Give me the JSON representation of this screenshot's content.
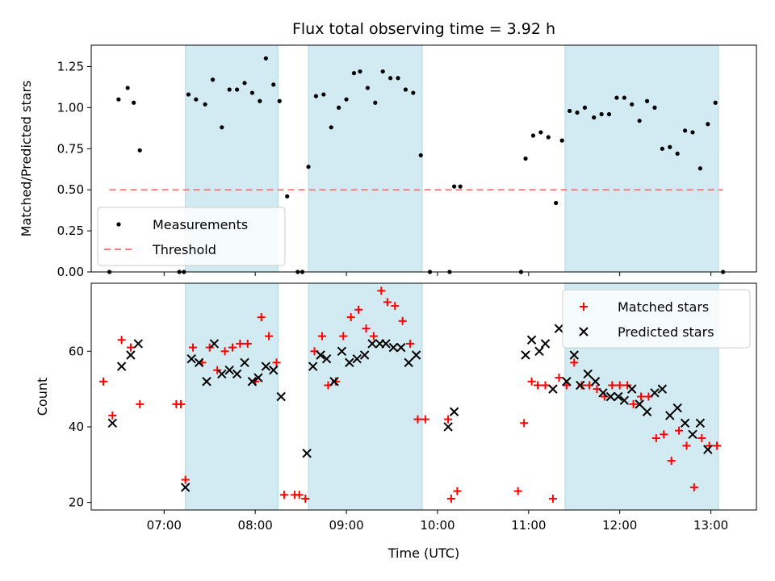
{
  "chart_data": [
    {
      "type": "scatter",
      "title": "Flux total observing time = 3.92 h",
      "xlabel": "",
      "ylabel": "Matched/Predicted stars",
      "xlim": [
        "06:12",
        "13:30"
      ],
      "ylim": [
        0,
        1.38
      ],
      "yticks": [
        0.0,
        0.25,
        0.5,
        0.75,
        1.0,
        1.25
      ],
      "ytick_labels": [
        "0.00",
        "0.25",
        "0.50",
        "0.75",
        "1.00",
        "1.25"
      ],
      "xticks": [
        "07:00",
        "08:00",
        "09:00",
        "10:00",
        "11:00",
        "12:00",
        "13:00"
      ],
      "shaded_intervals": [
        [
          "07:14",
          "08:15"
        ],
        [
          "08:35",
          "09:50"
        ],
        [
          "11:24",
          "13:05"
        ]
      ],
      "shade_color": "#add8e6",
      "legend": {
        "placement": "lower-left",
        "entries": [
          {
            "label": "Measurements",
            "marker": "dot",
            "color": "#000000"
          },
          {
            "label": "Threshold",
            "marker": "dashed-line",
            "color": "#f08080"
          }
        ]
      },
      "series": [
        {
          "name": "Measurements",
          "color": "#000000",
          "points": [
            [
              "06:24",
              0.0
            ],
            [
              "06:30",
              1.05
            ],
            [
              "06:36",
              1.12
            ],
            [
              "06:40",
              1.03
            ],
            [
              "06:44",
              0.74
            ],
            [
              "07:10",
              0.0
            ],
            [
              "07:13",
              0.0
            ],
            [
              "07:16",
              1.08
            ],
            [
              "07:21",
              1.05
            ],
            [
              "07:27",
              1.02
            ],
            [
              "07:32",
              1.17
            ],
            [
              "07:38",
              0.88
            ],
            [
              "07:43",
              1.11
            ],
            [
              "07:48",
              1.11
            ],
            [
              "07:53",
              1.15
            ],
            [
              "07:58",
              1.09
            ],
            [
              "08:03",
              1.04
            ],
            [
              "08:07",
              1.3
            ],
            [
              "08:12",
              1.14
            ],
            [
              "08:16",
              1.04
            ],
            [
              "08:21",
              0.46
            ],
            [
              "08:28",
              0.0
            ],
            [
              "08:31",
              0.0
            ],
            [
              "08:35",
              0.64
            ],
            [
              "08:40",
              1.07
            ],
            [
              "08:45",
              1.08
            ],
            [
              "08:50",
              0.88
            ],
            [
              "08:55",
              1.0
            ],
            [
              "09:00",
              1.05
            ],
            [
              "09:05",
              1.21
            ],
            [
              "09:09",
              1.22
            ],
            [
              "09:14",
              1.12
            ],
            [
              "09:19",
              1.03
            ],
            [
              "09:24",
              1.22
            ],
            [
              "09:29",
              1.18
            ],
            [
              "09:34",
              1.18
            ],
            [
              "09:39",
              1.11
            ],
            [
              "09:44",
              1.09
            ],
            [
              "09:49",
              0.71
            ],
            [
              "09:55",
              0.0
            ],
            [
              "10:08",
              0.0
            ],
            [
              "10:11",
              0.52
            ],
            [
              "10:15",
              0.52
            ],
            [
              "10:55",
              0.0
            ],
            [
              "10:58",
              0.69
            ],
            [
              "11:03",
              0.83
            ],
            [
              "11:08",
              0.85
            ],
            [
              "11:13",
              0.82
            ],
            [
              "11:18",
              0.42
            ],
            [
              "11:22",
              0.8
            ],
            [
              "11:27",
              0.98
            ],
            [
              "11:32",
              0.97
            ],
            [
              "11:37",
              1.0
            ],
            [
              "11:43",
              0.94
            ],
            [
              "11:48",
              0.96
            ],
            [
              "11:53",
              0.96
            ],
            [
              "11:58",
              1.06
            ],
            [
              "12:03",
              1.06
            ],
            [
              "12:08",
              1.02
            ],
            [
              "12:13",
              0.92
            ],
            [
              "12:18",
              1.04
            ],
            [
              "12:23",
              1.0
            ],
            [
              "12:28",
              0.75
            ],
            [
              "12:33",
              0.76
            ],
            [
              "12:38",
              0.72
            ],
            [
              "12:43",
              0.86
            ],
            [
              "12:48",
              0.85
            ],
            [
              "12:53",
              0.63
            ],
            [
              "12:58",
              0.9
            ],
            [
              "13:03",
              1.03
            ],
            [
              "13:08",
              0.0
            ]
          ]
        },
        {
          "name": "Threshold",
          "color": "#f08080",
          "line_style": "dashed",
          "points": [
            [
              "06:24",
              0.5
            ],
            [
              "13:08",
              0.5
            ]
          ]
        }
      ]
    },
    {
      "type": "scatter",
      "title": "",
      "xlabel": "Time (UTC)",
      "ylabel": "Count",
      "xlim": [
        "06:12",
        "13:30"
      ],
      "ylim": [
        18,
        78
      ],
      "yticks": [
        20,
        40,
        60
      ],
      "ytick_labels": [
        "20",
        "40",
        "60"
      ],
      "xticks": [
        "07:00",
        "08:00",
        "09:00",
        "10:00",
        "11:00",
        "12:00",
        "13:00"
      ],
      "xtick_labels": [
        "07:00",
        "08:00",
        "09:00",
        "10:00",
        "11:00",
        "12:00",
        "13:00"
      ],
      "shaded_intervals": [
        [
          "07:14",
          "08:15"
        ],
        [
          "08:35",
          "09:50"
        ],
        [
          "11:24",
          "13:05"
        ]
      ],
      "shade_color": "#add8e6",
      "legend": {
        "placement": "top-right",
        "entries": [
          {
            "label": "Matched stars",
            "marker": "plus",
            "color": "#ff0000"
          },
          {
            "label": "Predicted stars",
            "marker": "x",
            "color": "#000000"
          }
        ]
      },
      "series": [
        {
          "name": "Matched stars",
          "color": "#ff0000",
          "marker": "plus",
          "points": [
            [
              "06:20",
              52
            ],
            [
              "06:26",
              43
            ],
            [
              "06:32",
              63
            ],
            [
              "06:38",
              61
            ],
            [
              "06:44",
              46
            ],
            [
              "07:08",
              46
            ],
            [
              "07:11",
              46
            ],
            [
              "07:14",
              26
            ],
            [
              "07:19",
              61
            ],
            [
              "07:25",
              57
            ],
            [
              "07:30",
              61
            ],
            [
              "07:35",
              55
            ],
            [
              "07:40",
              60
            ],
            [
              "07:45",
              61
            ],
            [
              "07:50",
              62
            ],
            [
              "07:55",
              62
            ],
            [
              "08:00",
              52
            ],
            [
              "08:04",
              69
            ],
            [
              "08:09",
              64
            ],
            [
              "08:14",
              57
            ],
            [
              "08:19",
              22
            ],
            [
              "08:26",
              22
            ],
            [
              "08:29",
              22
            ],
            [
              "08:33",
              21
            ],
            [
              "08:39",
              60
            ],
            [
              "08:44",
              64
            ],
            [
              "08:48",
              51
            ],
            [
              "08:53",
              52
            ],
            [
              "08:58",
              64
            ],
            [
              "09:03",
              69
            ],
            [
              "09:08",
              71
            ],
            [
              "09:13",
              66
            ],
            [
              "09:18",
              64
            ],
            [
              "09:23",
              76
            ],
            [
              "09:27",
              73
            ],
            [
              "09:32",
              72
            ],
            [
              "09:37",
              68
            ],
            [
              "09:42",
              62
            ],
            [
              "09:47",
              42
            ],
            [
              "09:52",
              42
            ],
            [
              "10:07",
              42
            ],
            [
              "10:09",
              21
            ],
            [
              "10:13",
              23
            ],
            [
              "10:53",
              23
            ],
            [
              "10:57",
              41
            ],
            [
              "11:02",
              52
            ],
            [
              "11:06",
              51
            ],
            [
              "11:11",
              51
            ],
            [
              "11:16",
              21
            ],
            [
              "11:20",
              53
            ],
            [
              "11:25",
              51
            ],
            [
              "11:30",
              57
            ],
            [
              "11:35",
              51
            ],
            [
              "11:40",
              51
            ],
            [
              "11:45",
              50
            ],
            [
              "11:50",
              48
            ],
            [
              "11:55",
              51
            ],
            [
              "12:00",
              51
            ],
            [
              "12:05",
              51
            ],
            [
              "12:09",
              46
            ],
            [
              "12:14",
              48
            ],
            [
              "12:19",
              48
            ],
            [
              "12:24",
              37
            ],
            [
              "12:29",
              38
            ],
            [
              "12:34",
              31
            ],
            [
              "12:39",
              39
            ],
            [
              "12:44",
              35
            ],
            [
              "12:49",
              24
            ],
            [
              "12:54",
              37
            ],
            [
              "12:59",
              35
            ],
            [
              "13:04",
              35
            ]
          ]
        },
        {
          "name": "Predicted stars",
          "color": "#000000",
          "marker": "x",
          "points": [
            [
              "06:26",
              41
            ],
            [
              "06:32",
              56
            ],
            [
              "06:38",
              59
            ],
            [
              "06:43",
              62
            ],
            [
              "07:14",
              24
            ],
            [
              "07:18",
              58
            ],
            [
              "07:23",
              57
            ],
            [
              "07:28",
              52
            ],
            [
              "07:33",
              62
            ],
            [
              "07:38",
              54
            ],
            [
              "07:43",
              55
            ],
            [
              "07:48",
              54
            ],
            [
              "07:53",
              57
            ],
            [
              "07:58",
              52
            ],
            [
              "08:02",
              53
            ],
            [
              "08:07",
              56
            ],
            [
              "08:12",
              55
            ],
            [
              "08:17",
              48
            ],
            [
              "08:34",
              33
            ],
            [
              "08:38",
              56
            ],
            [
              "08:43",
              59
            ],
            [
              "08:47",
              58
            ],
            [
              "08:52",
              52
            ],
            [
              "08:57",
              60
            ],
            [
              "09:02",
              57
            ],
            [
              "09:07",
              58
            ],
            [
              "09:12",
              59
            ],
            [
              "09:17",
              62
            ],
            [
              "09:22",
              62
            ],
            [
              "09:26",
              62
            ],
            [
              "09:31",
              61
            ],
            [
              "09:36",
              61
            ],
            [
              "09:41",
              57
            ],
            [
              "09:46",
              59
            ],
            [
              "10:07",
              40
            ],
            [
              "10:11",
              44
            ],
            [
              "10:58",
              59
            ],
            [
              "11:02",
              63
            ],
            [
              "11:07",
              60
            ],
            [
              "11:11",
              62
            ],
            [
              "11:16",
              50
            ],
            [
              "11:20",
              66
            ],
            [
              "11:25",
              52
            ],
            [
              "11:30",
              59
            ],
            [
              "11:34",
              51
            ],
            [
              "11:39",
              54
            ],
            [
              "11:44",
              52
            ],
            [
              "11:49",
              49
            ],
            [
              "11:54",
              48
            ],
            [
              "11:59",
              48
            ],
            [
              "12:03",
              47
            ],
            [
              "12:08",
              50
            ],
            [
              "12:13",
              46
            ],
            [
              "12:18",
              44
            ],
            [
              "12:23",
              49
            ],
            [
              "12:28",
              50
            ],
            [
              "12:33",
              43
            ],
            [
              "12:38",
              45
            ],
            [
              "12:43",
              41
            ],
            [
              "12:48",
              38
            ],
            [
              "12:53",
              41
            ],
            [
              "12:58",
              34
            ]
          ]
        }
      ]
    }
  ]
}
